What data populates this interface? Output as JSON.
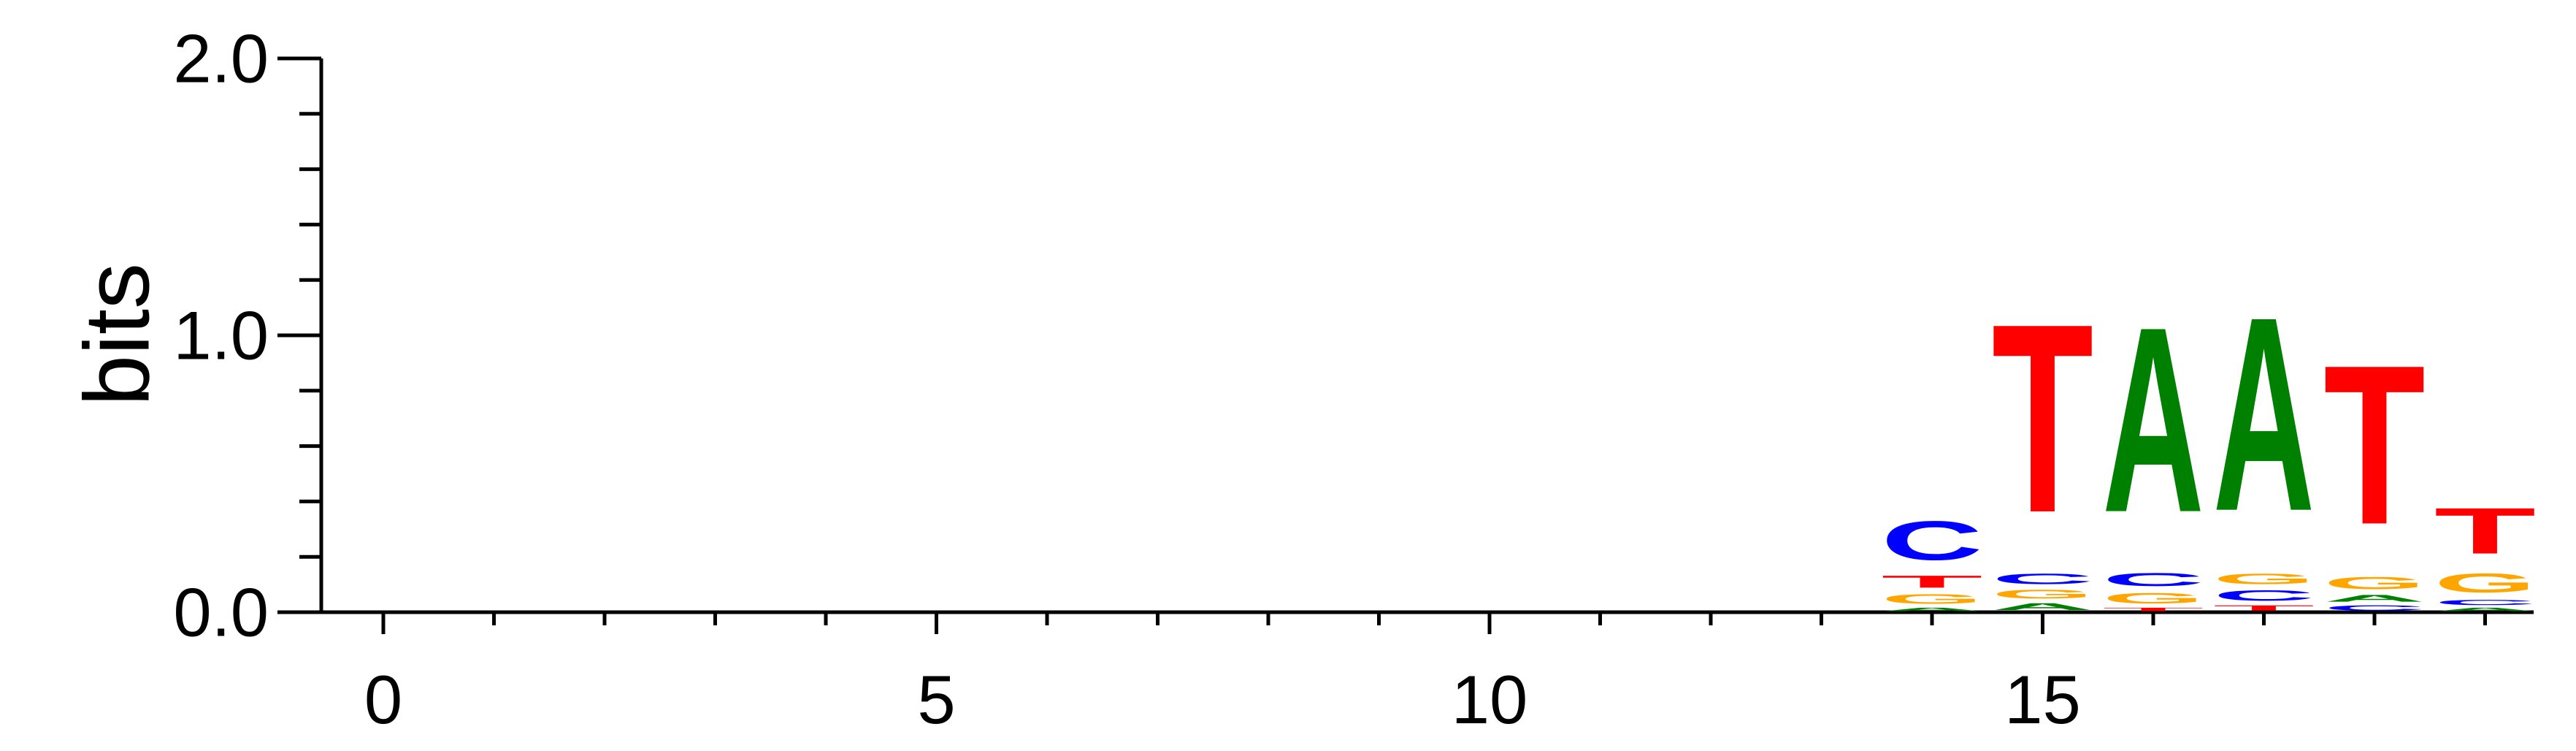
{
  "chart_data": {
    "type": "sequence-logo",
    "ylabel": "bits",
    "ylim": [
      0,
      2
    ],
    "xlim": [
      -0.5,
      19
    ],
    "y_ticks": [
      "0.0",
      "1.0",
      "2.0"
    ],
    "x_ticks": [
      "0",
      "5",
      "10",
      "15"
    ],
    "x_tick_values": [
      0,
      5,
      10,
      15
    ],
    "colors": {
      "A": "#008000",
      "C": "#0000ff",
      "G": "#ffa500",
      "T": "#ff0000"
    },
    "positions": [
      {
        "pos": 14,
        "stack": [
          {
            "letter": "A",
            "bits": 0.02
          },
          {
            "letter": "G",
            "bits": 0.055
          },
          {
            "letter": "T",
            "bits": 0.07
          },
          {
            "letter": "C",
            "bits": 0.225
          }
        ]
      },
      {
        "pos": 15,
        "stack": [
          {
            "letter": "A",
            "bits": 0.04
          },
          {
            "letter": "G",
            "bits": 0.05
          },
          {
            "letter": "C",
            "bits": 0.06
          },
          {
            "letter": "T",
            "bits": 1.09
          }
        ]
      },
      {
        "pos": 16,
        "stack": [
          {
            "letter": "T",
            "bits": 0.02
          },
          {
            "letter": "G",
            "bits": 0.06
          },
          {
            "letter": "C",
            "bits": 0.075
          },
          {
            "letter": "A",
            "bits": 1.07
          }
        ]
      },
      {
        "pos": 17,
        "stack": [
          {
            "letter": "T",
            "bits": 0.03
          },
          {
            "letter": "C",
            "bits": 0.06
          },
          {
            "letter": "G",
            "bits": 0.06
          },
          {
            "letter": "A",
            "bits": 1.12
          }
        ]
      },
      {
        "pos": 18,
        "stack": [
          {
            "letter": "C",
            "bits": 0.03
          },
          {
            "letter": "A",
            "bits": 0.04
          },
          {
            "letter": "G",
            "bits": 0.07
          },
          {
            "letter": "T",
            "bits": 0.92
          }
        ]
      },
      {
        "pos": 19,
        "stack": [
          {
            "letter": "A",
            "bits": 0.02
          },
          {
            "letter": "C",
            "bits": 0.03
          },
          {
            "letter": "G",
            "bits": 0.11
          },
          {
            "letter": "T",
            "bits": 0.265
          }
        ]
      }
    ]
  }
}
